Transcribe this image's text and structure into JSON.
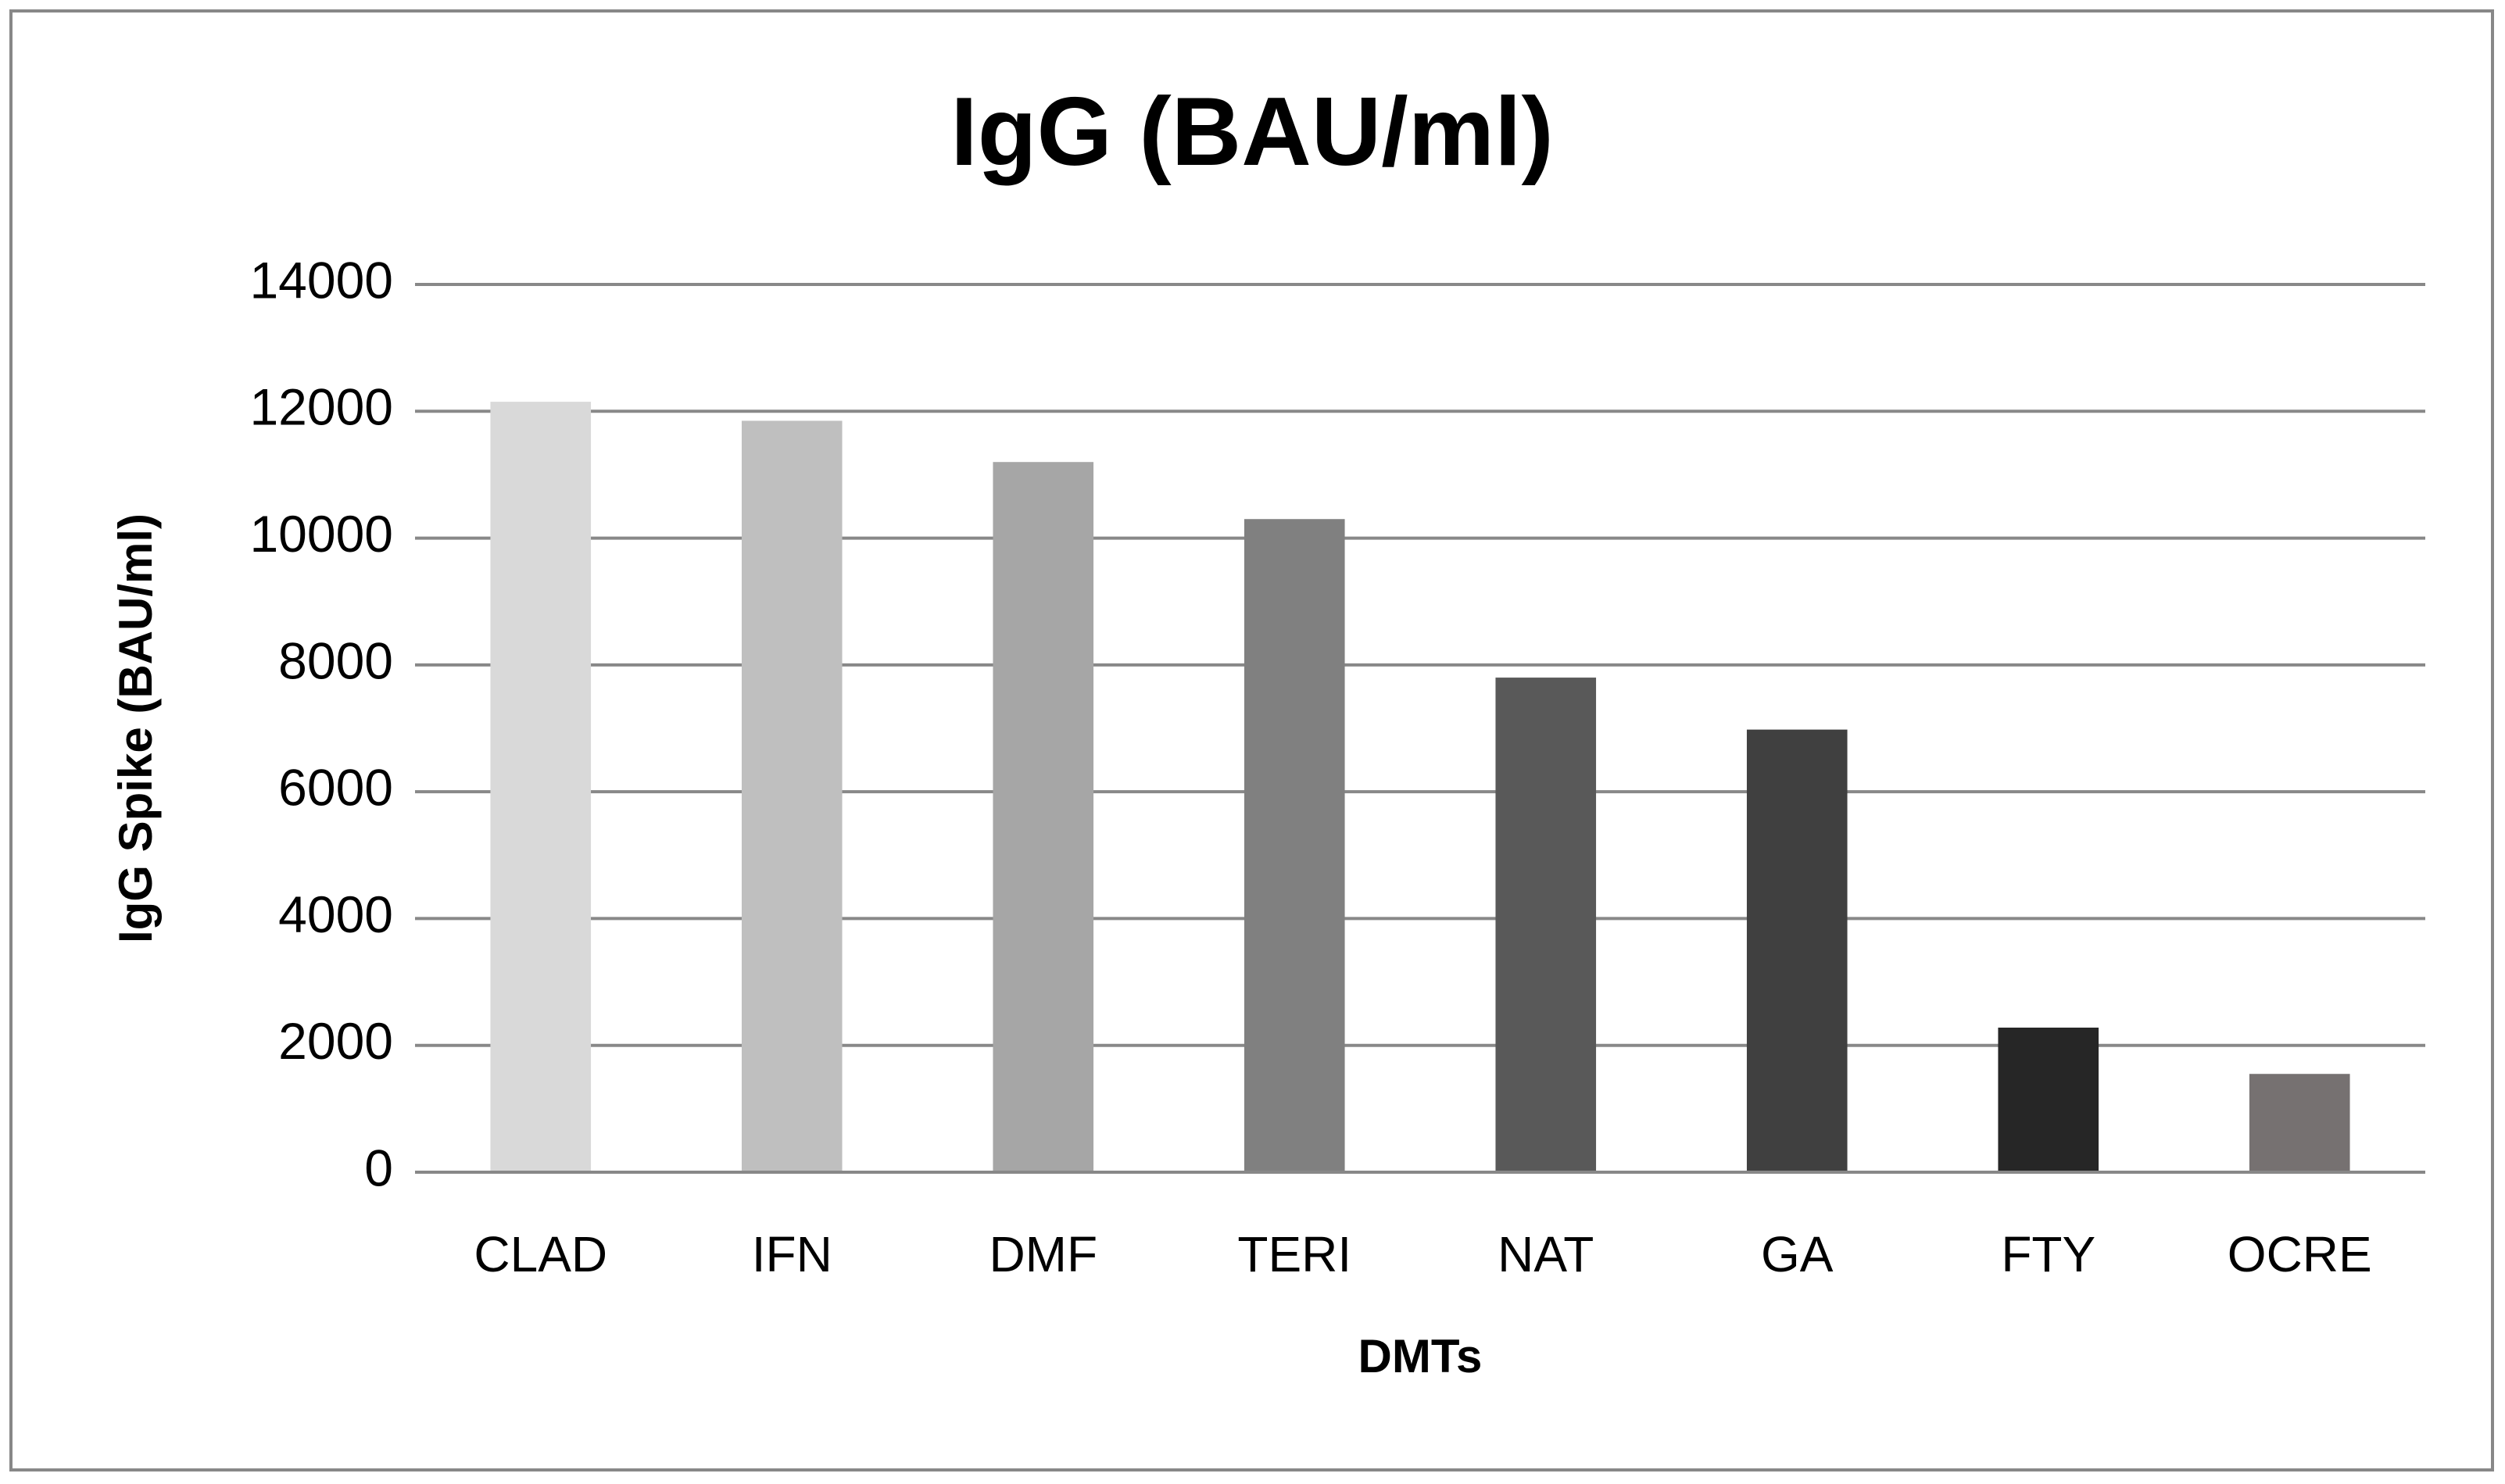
{
  "chart_data": {
    "type": "bar",
    "title": "IgG (BAU/ml)",
    "x_label": "DMTs",
    "y_label": "IgG Spike (BAU/ml)",
    "categories": [
      "CLAD",
      "IFN",
      "DMF",
      "TERI",
      "NAT",
      "GA",
      "FTY",
      "OCRE"
    ],
    "values": [
      12150,
      11850,
      11200,
      10300,
      7800,
      6980,
      2280,
      1550
    ],
    "colors": [
      "#d9d9d9",
      "#bfbfbf",
      "#a6a6a6",
      "#808080",
      "#595959",
      "#404040",
      "#262626",
      "#767171"
    ],
    "ylim": [
      0,
      14000
    ],
    "yticks": [
      0,
      2000,
      4000,
      6000,
      8000,
      10000,
      12000,
      14000
    ],
    "grid": true
  }
}
